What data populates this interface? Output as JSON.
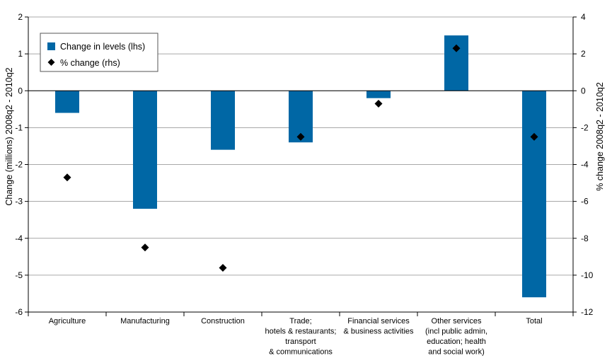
{
  "chart_data": {
    "type": "bar",
    "categories": [
      [
        "Agriculture"
      ],
      [
        "Manufacturing"
      ],
      [
        "Construction"
      ],
      [
        "Trade;",
        "hotels & restaurants;",
        "transport",
        "& communications"
      ],
      [
        "Financial services",
        "& business activities"
      ],
      [
        "Other services",
        "(incl public admin,",
        "education; health",
        "and social work)"
      ],
      [
        "Total"
      ]
    ],
    "series": [
      {
        "name": "Change in levels (lhs)",
        "axis": "left",
        "kind": "bar",
        "color": "#0067a5",
        "values": [
          -0.6,
          -3.2,
          -1.6,
          -1.4,
          -0.2,
          1.5,
          -5.6
        ]
      },
      {
        "name": "% change (rhs)",
        "axis": "right",
        "kind": "marker",
        "marker": "diamond",
        "color": "#000000",
        "values": [
          -4.7,
          -8.5,
          -9.6,
          -2.5,
          -0.7,
          2.3,
          -2.5
        ]
      }
    ],
    "ylabel": "Change (millions) 2008q2 - 2010q2",
    "y2label": "% change 2008q2 - 2010q2",
    "ylim": [
      -6,
      2
    ],
    "y2lim": [
      -12,
      4
    ],
    "yticks": [
      "2",
      "1",
      "0",
      "-1",
      "-2",
      "-3",
      "-4",
      "-5",
      "-6"
    ],
    "y2ticks": [
      "4",
      "2",
      "0",
      "-2",
      "-4",
      "-6",
      "-8",
      "-10",
      "-12"
    ],
    "grid": true,
    "legend_position": "top-left"
  }
}
